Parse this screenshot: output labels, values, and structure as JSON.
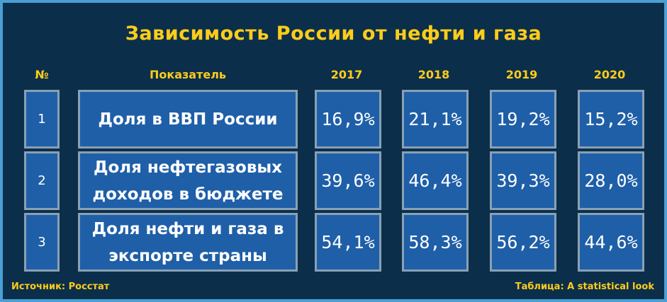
{
  "title": "Зависимость России от нефти и газа",
  "headers": {
    "num": "№",
    "indicator": "Показатель",
    "years": [
      "2017",
      "2018",
      "2019",
      "2020"
    ]
  },
  "rows": [
    {
      "num": "1",
      "label_line1": "Доля в ВВП России",
      "label_line2": "",
      "values": [
        "16,9%",
        "21,1%",
        "19,2%",
        "15,2%"
      ]
    },
    {
      "num": "2",
      "label_line1": "Доля нефтегазовых",
      "label_line2": "доходов в бюджете",
      "values": [
        "39,6%",
        "46,4%",
        "39,3%",
        "28,0%"
      ]
    },
    {
      "num": "3",
      "label_line1": "Доля нефти и газа в",
      "label_line2": "экспорте страны",
      "values": [
        "54,1%",
        "58,3%",
        "56,2%",
        "44,6%"
      ]
    }
  ],
  "footer": {
    "source": "Источник: Росстат",
    "credit": "Таблица: A statistical look"
  },
  "colors": {
    "background": "#0b2f4a",
    "outer_border": "#4a9fd4",
    "cell_fill": "#1f5fa8",
    "cell_border": "#8aa0b4",
    "accent_text": "#ffcc1a"
  }
}
